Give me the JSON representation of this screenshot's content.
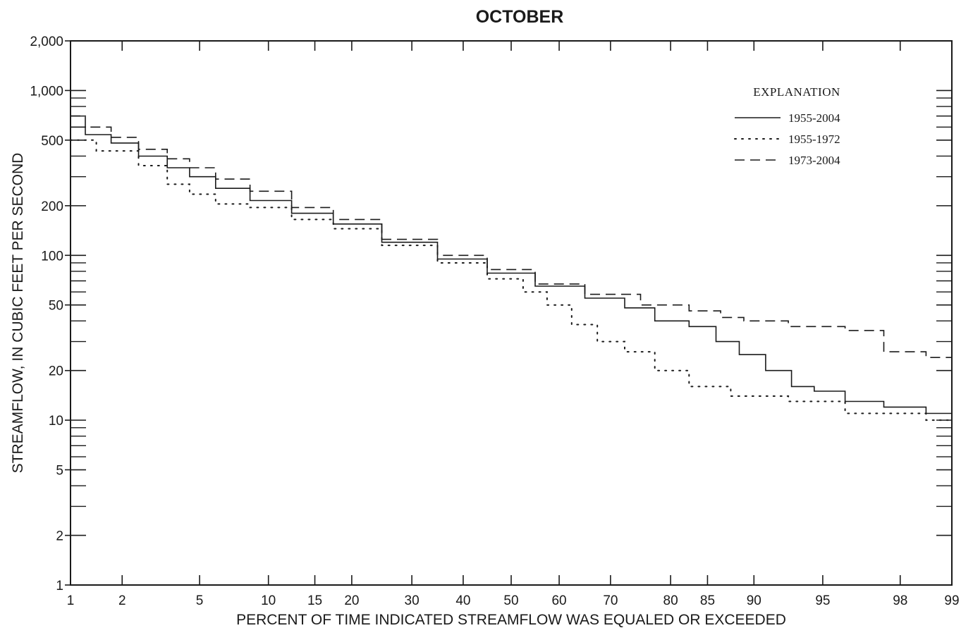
{
  "chart_data": {
    "type": "line",
    "title": "OCTOBER",
    "xlabel": "PERCENT OF TIME INDICATED STREAMFLOW WAS EQUALED OR EXCEEDED",
    "ylabel": "STREAMFLOW, IN CUBIC FEET PER SECOND",
    "x_scale": "probability",
    "y_scale": "log",
    "xlim": [
      1,
      99
    ],
    "ylim": [
      1,
      2000
    ],
    "x_ticks": [
      1,
      2,
      5,
      10,
      15,
      20,
      30,
      40,
      50,
      60,
      70,
      80,
      85,
      90,
      95,
      98,
      99
    ],
    "x_tick_labels": [
      "1",
      "2",
      "5",
      "10",
      "15",
      "20",
      "30",
      "40",
      "50",
      "60",
      "70",
      "80",
      "85",
      "90",
      "95",
      "98",
      "99"
    ],
    "y_ticks": [
      1,
      2,
      5,
      10,
      20,
      50,
      100,
      200,
      500,
      1000,
      2000
    ],
    "y_tick_labels": [
      "1",
      "2",
      "5",
      "10",
      "20",
      "50",
      "100",
      "200",
      "500",
      "1,000",
      "2,000"
    ],
    "y_minor_ticks": [
      3,
      4,
      6,
      7,
      8,
      9,
      30,
      40,
      60,
      70,
      80,
      90,
      300,
      400,
      600,
      700,
      800,
      900
    ],
    "legend": {
      "title": "EXPLANATION",
      "position": "top-right"
    },
    "series": [
      {
        "name": "1955-2004",
        "style": "solid",
        "x": [
          1,
          1.5,
          2,
          3,
          4,
          5,
          7,
          10,
          15,
          20,
          30,
          40,
          50,
          60,
          70,
          75,
          80,
          85,
          87,
          90,
          92,
          94,
          95,
          97,
          98,
          99
        ],
        "y": [
          600,
          540,
          480,
          400,
          340,
          300,
          255,
          215,
          180,
          155,
          120,
          95,
          78,
          65,
          55,
          48,
          40,
          37,
          30,
          25,
          20,
          16,
          15,
          13,
          12,
          11
        ]
      },
      {
        "name": "1955-1972",
        "style": "dotted",
        "x": [
          1,
          2,
          3,
          4,
          5,
          7,
          10,
          15,
          20,
          30,
          40,
          50,
          55,
          60,
          65,
          70,
          75,
          80,
          85,
          90,
          95,
          97,
          98,
          99
        ],
        "y": [
          500,
          430,
          350,
          270,
          235,
          205,
          195,
          165,
          145,
          115,
          90,
          72,
          60,
          50,
          38,
          30,
          26,
          20,
          16,
          14,
          13,
          11,
          11,
          10
        ]
      },
      {
        "name": "1973-2004",
        "style": "dashed",
        "x": [
          1,
          1.5,
          2,
          3,
          4,
          5,
          7,
          10,
          15,
          20,
          30,
          40,
          50,
          60,
          70,
          80,
          85,
          88,
          90,
          95,
          97,
          98,
          99
        ],
        "y": [
          700,
          600,
          520,
          440,
          385,
          340,
          290,
          245,
          195,
          165,
          125,
          100,
          82,
          67,
          58,
          50,
          46,
          42,
          40,
          37,
          35,
          26,
          24
        ]
      }
    ]
  }
}
